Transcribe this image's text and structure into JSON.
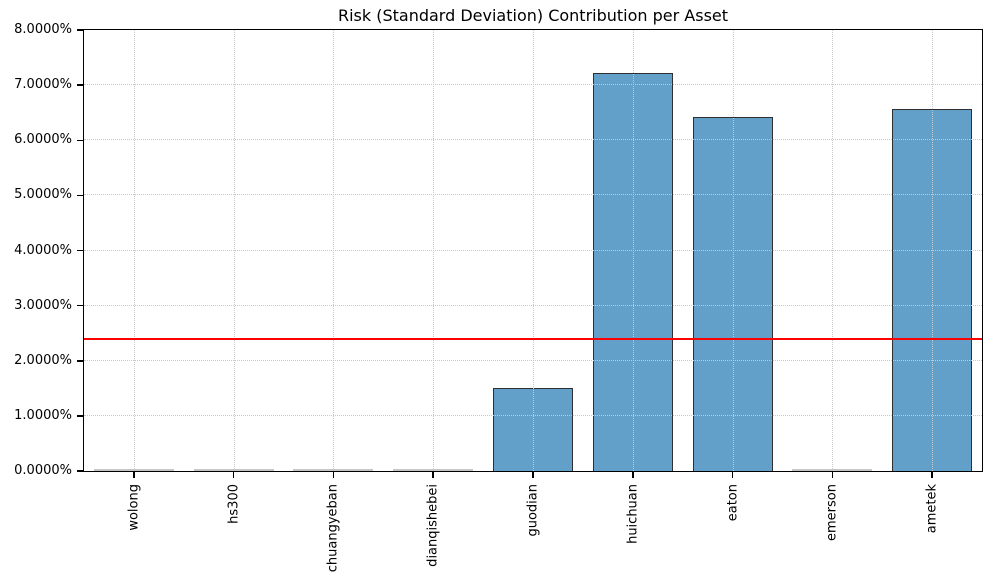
{
  "title": "Risk (Standard Deviation) Contribution per Asset",
  "chart_data": {
    "type": "bar",
    "title": "Risk (Standard Deviation) Contribution per Asset",
    "categories": [
      "wolong",
      "hs300",
      "chuangyeban",
      "dianqishebei",
      "guodian",
      "huichuan",
      "eaton",
      "emerson",
      "ametek"
    ],
    "values": [
      0.0,
      0.0,
      0.0,
      0.0,
      1.51,
      7.22,
      6.43,
      0.0,
      6.56
    ],
    "xlabel": "",
    "ylabel": "",
    "ylim": [
      0,
      8
    ],
    "ytick_labels": [
      "0.0000%",
      "1.0000%",
      "2.0000%",
      "3.0000%",
      "4.0000%",
      "5.0000%",
      "6.0000%",
      "7.0000%",
      "8.0000%"
    ],
    "reference_line": {
      "value": 2.4,
      "color": "#ff0000"
    },
    "grid": true,
    "grid_style": "dotted",
    "legend": null,
    "colors": {
      "bar_fill": "#62a0ca",
      "bar_edge": "#2f2f2f",
      "zero_bar": "#c6c6c6",
      "gridline": "#c9c9c9",
      "axis": "#000000"
    }
  }
}
